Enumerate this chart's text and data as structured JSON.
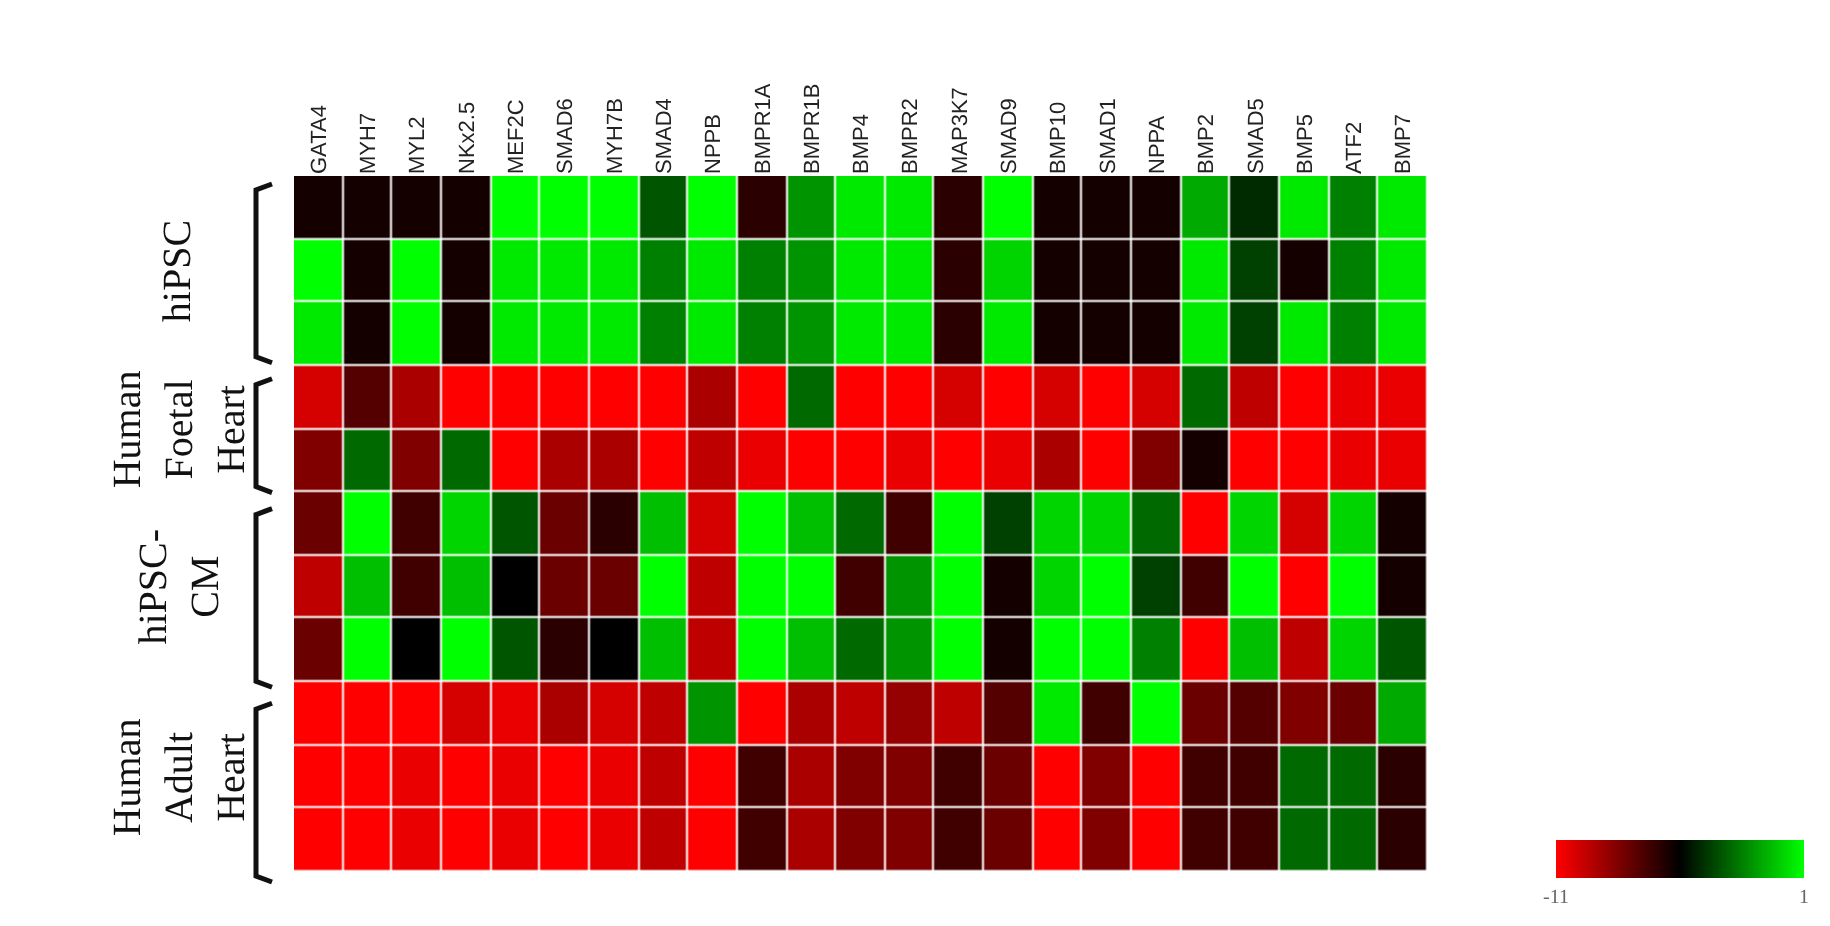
{
  "chart_data": {
    "type": "heatmap",
    "categories": [
      "GATA4",
      "MYH7",
      "MYL2",
      "NKx2.5",
      "MEF2C",
      "SMAD6",
      "MYH7B",
      "SMAD4",
      "NPPB",
      "BMPR1A",
      "BMPR1B",
      "BMP4",
      "BMPR2",
      "MAP3K7",
      "SMAD9",
      "BMP10",
      "SMAD1",
      "NPPA",
      "BMP2",
      "SMAD5",
      "BMP5",
      "ATF2",
      "BMP7"
    ],
    "y_categories": [
      null,
      null,
      null,
      null,
      null,
      null,
      null,
      null,
      null,
      null,
      null
    ],
    "cells": [
      [
        -5.5,
        -5.5,
        -5.5,
        -5.5,
        1,
        1,
        1,
        -3,
        1,
        -6,
        -1.5,
        0.5,
        0.5,
        -6,
        1,
        -5.5,
        -5.5,
        -5.5,
        -1,
        -4,
        0.5,
        -2,
        0.5
      ],
      [
        1,
        -5.5,
        1,
        -5.5,
        0.5,
        0.5,
        0.5,
        -2,
        0.5,
        -2,
        -1.5,
        0.5,
        0.5,
        -6,
        0,
        -5.5,
        -5.5,
        -5.5,
        0.5,
        -3.5,
        -5.5,
        -2,
        0.5
      ],
      [
        0.5,
        -5.5,
        1,
        -5.5,
        0.5,
        0.5,
        0.5,
        -2,
        0.5,
        -2,
        -1.5,
        0.5,
        0.5,
        -6,
        0.5,
        -5.5,
        -5.5,
        -5.5,
        0.5,
        -3.5,
        0.5,
        -2,
        0.5
      ],
      [
        -10,
        -7,
        -9,
        -11,
        -11,
        -11,
        -11,
        -11,
        -9,
        -11,
        -2.5,
        -11,
        -11,
        -10,
        -11,
        -10,
        -11,
        -10,
        -2.5,
        -9.5,
        -11,
        -10.5,
        -10.5
      ],
      [
        -8,
        -2.5,
        -8,
        -2.5,
        -11,
        -9,
        -9,
        -11,
        -9.5,
        -10.5,
        -11,
        -11,
        -10.5,
        -11,
        -10.5,
        -9,
        -11,
        -8,
        -5.5,
        -11,
        -11,
        -10.5,
        -10.5
      ],
      [
        -7.5,
        1,
        -6.5,
        0,
        -3,
        -7.5,
        -6,
        -0.5,
        -10,
        1,
        -0.5,
        -2.5,
        -6.5,
        1,
        -3.5,
        0,
        0,
        -2.5,
        -11,
        0,
        -10,
        0,
        -5.5
      ],
      [
        -9.5,
        -0.5,
        -6.5,
        -0.5,
        -5,
        -7.5,
        -7.5,
        1,
        -9.5,
        1,
        1,
        -6.5,
        -1.5,
        1,
        -5.5,
        0,
        1,
        -3.5,
        -6.5,
        1,
        -11,
        1,
        -5.5
      ],
      [
        -7.5,
        1,
        -5,
        1,
        -3,
        -6,
        -5,
        -0.5,
        -9.5,
        1,
        -0.5,
        -2.5,
        -1.5,
        1,
        -5.5,
        1,
        1,
        -2,
        -11,
        -0.5,
        -9.5,
        0,
        -3
      ],
      [
        -11,
        -11,
        -11,
        -10,
        -10.5,
        -9,
        -10,
        -9.5,
        -1.5,
        -11,
        -9,
        -9.5,
        -8.5,
        -9.5,
        -7,
        0.5,
        -6.5,
        1,
        -7.5,
        -7,
        -8,
        -7.5,
        -1
      ],
      [
        -11,
        -11,
        -10.5,
        -11,
        -10.5,
        -11,
        -10.5,
        -9.5,
        -11,
        -6.5,
        -9,
        -8,
        -8,
        -6.5,
        -7.5,
        -11,
        -8,
        -11,
        -6.5,
        -6.5,
        -2.5,
        -2.5,
        -6
      ],
      [
        -11,
        -11,
        -10.5,
        -11,
        -10.5,
        -11,
        -10.5,
        -9.5,
        -11,
        -6.5,
        -9,
        -8,
        -8,
        -6.5,
        -7.5,
        -11,
        -8,
        -11,
        -6.5,
        -6.5,
        -2.5,
        -2.5,
        -6
      ]
    ],
    "clim": [
      -11,
      1
    ],
    "cticks": [
      1,
      -11
    ],
    "annotations": [
      "hiPSC",
      "Human\nFoetal\nHeart",
      "hiPSC-\nCM",
      "Human\nAdult\nHeart"
    ]
  }
}
